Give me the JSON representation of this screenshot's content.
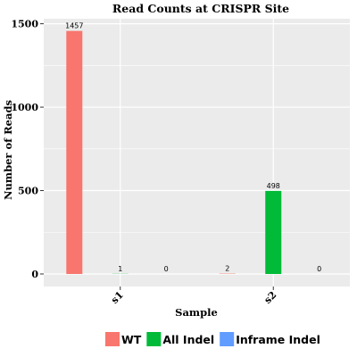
{
  "chart_data": {
    "type": "bar",
    "title": "Read Counts at CRISPR Site",
    "xlabel": "Sample",
    "ylabel": "Number of Reads",
    "categories": [
      "s1",
      "s2"
    ],
    "series": [
      {
        "name": "WT",
        "color": "#F8766D",
        "values": [
          1457,
          2
        ]
      },
      {
        "name": "All Indel",
        "color": "#00BA38",
        "values": [
          1,
          498
        ]
      },
      {
        "name": "Inframe Indel",
        "color": "#619CFF",
        "values": [
          0,
          0
        ]
      }
    ],
    "ylim": [
      -75,
      1530
    ],
    "yticks": [
      0,
      500,
      1000,
      1500
    ],
    "grid": true,
    "legend_position": "bottom",
    "colors": {
      "panel": "#EBEBEB",
      "grid": "#FFFFFF"
    }
  }
}
